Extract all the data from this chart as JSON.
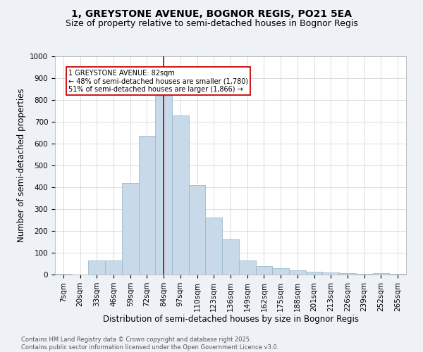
{
  "title": "1, GREYSTONE AVENUE, BOGNOR REGIS, PO21 5EA",
  "subtitle": "Size of property relative to semi-detached houses in Bognor Regis",
  "xlabel": "Distribution of semi-detached houses by size in Bognor Regis",
  "ylabel": "Number of semi-detached properties",
  "categories": [
    "7sqm",
    "20sqm",
    "33sqm",
    "46sqm",
    "59sqm",
    "72sqm",
    "84sqm",
    "97sqm",
    "110sqm",
    "123sqm",
    "136sqm",
    "149sqm",
    "162sqm",
    "175sqm",
    "188sqm",
    "201sqm",
    "213sqm",
    "226sqm",
    "239sqm",
    "252sqm",
    "265sqm"
  ],
  "values": [
    2,
    0,
    65,
    65,
    420,
    635,
    820,
    730,
    410,
    260,
    160,
    65,
    40,
    30,
    20,
    13,
    10,
    7,
    2,
    8,
    2
  ],
  "bar_color": "#c8daea",
  "bar_edge_color": "#9bbcce",
  "vline_x_index": 6,
  "vline_color": "#aa0000",
  "annotation_text_line1": "1 GREYSTONE AVENUE: 82sqm",
  "annotation_text_line2": "← 48% of semi-detached houses are smaller (1,780)",
  "annotation_text_line3": "51% of semi-detached houses are larger (1,866) →",
  "ylim": [
    0,
    1000
  ],
  "yticks": [
    0,
    100,
    200,
    300,
    400,
    500,
    600,
    700,
    800,
    900,
    1000
  ],
  "footnote": "Contains HM Land Registry data © Crown copyright and database right 2025.\nContains public sector information licensed under the Open Government Licence v3.0.",
  "bg_color": "#eef2f7",
  "plot_bg_color": "#ffffff",
  "title_fontsize": 10,
  "subtitle_fontsize": 9,
  "axis_label_fontsize": 8.5,
  "tick_fontsize": 7.5,
  "footnote_fontsize": 6
}
